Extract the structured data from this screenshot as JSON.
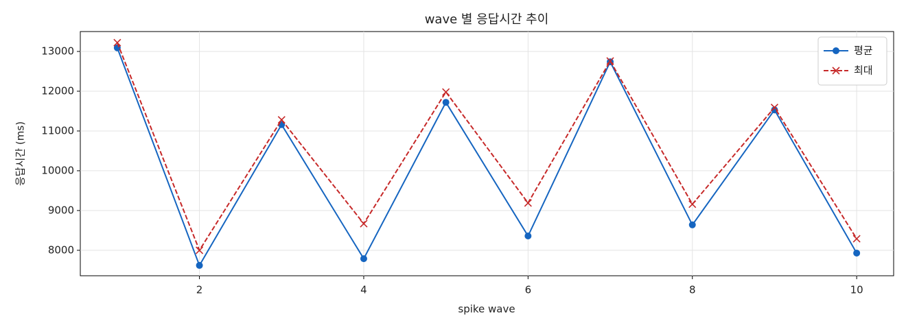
{
  "chart_data": {
    "type": "line",
    "title": "wave 별 응답시간 추이",
    "xlabel": "spike wave",
    "ylabel": "응답시간 (ms)",
    "x": [
      1,
      2,
      3,
      4,
      5,
      6,
      7,
      8,
      9,
      10
    ],
    "series": [
      {
        "name": "평균",
        "color": "#1565c0",
        "linestyle": "solid",
        "marker": "o",
        "values": [
          13090,
          7620,
          11160,
          7790,
          11720,
          8360,
          12740,
          8640,
          11530,
          7930
        ]
      },
      {
        "name": "최대",
        "color": "#c62828",
        "linestyle": "dashed",
        "marker": "x",
        "values": [
          13220,
          8000,
          11280,
          8670,
          11980,
          9190,
          12760,
          9160,
          11590,
          8290
        ]
      }
    ],
    "xlim": [
      0.55,
      10.45
    ],
    "ylim": [
      7360,
      13500
    ],
    "xticks": [
      2,
      4,
      6,
      8,
      10
    ],
    "yticks": [
      8000,
      9000,
      10000,
      11000,
      12000,
      13000
    ],
    "grid": true,
    "legend": "upper right"
  }
}
